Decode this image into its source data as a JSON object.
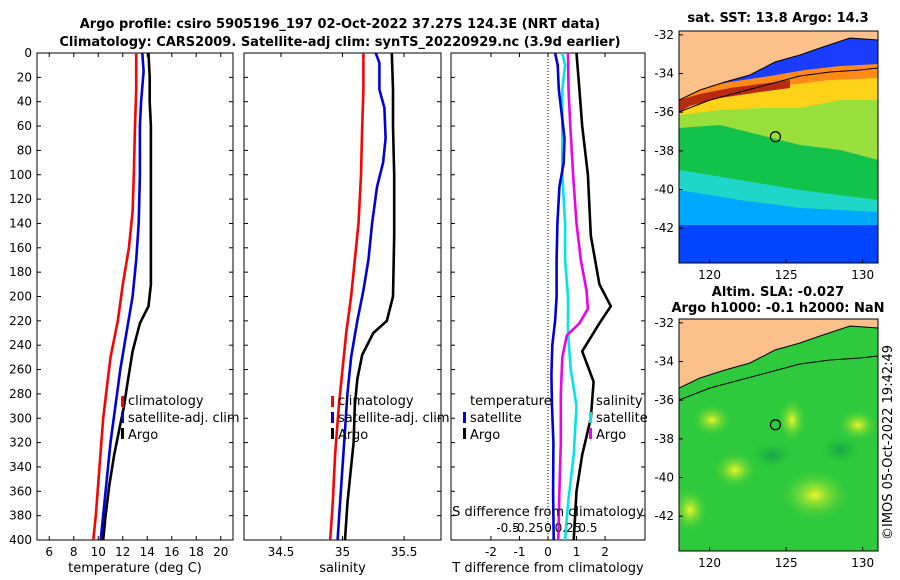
{
  "titles": {
    "line1": "Argo profile: csiro 5905196_197 02-Oct-2022 37.27S 124.3E (NRT data)",
    "line2": "Climatology: CARS2009. Satellite-adj clim: synTS_20220929.nc (3.9d earlier)",
    "sst_title": "sat. SST: 13.8 Argo: 14.3",
    "sla_title1": "Altim. SLA: -0.027",
    "sla_title2": "Argo h1000: -0.1 h2000: NaN",
    "credit": "©IMOS 05-Oct-2022 19:42:49"
  },
  "colors": {
    "climatology": "#ff0000",
    "satellite": "#0000dd",
    "argo": "#000000",
    "t_sat_diff": "#00e6e6",
    "s_diff": "#ee00ee"
  },
  "chart_data": [
    {
      "type": "line",
      "title": "",
      "xlabel": "temperature (deg C)",
      "ylabel": "",
      "xlim": [
        5,
        21
      ],
      "ylim": [
        0,
        400
      ],
      "xticks": [
        6,
        8,
        10,
        12,
        14,
        16,
        18,
        20
      ],
      "yticks": [
        0,
        20,
        40,
        60,
        80,
        100,
        120,
        140,
        160,
        180,
        200,
        220,
        240,
        260,
        280,
        300,
        320,
        340,
        360,
        380,
        400
      ],
      "legend": [
        "climatology",
        "satellite-adj. clim",
        "Argo"
      ],
      "series": [
        {
          "name": "climatology",
          "points": [
            [
              13.1,
              0
            ],
            [
              13.1,
              30
            ],
            [
              13.0,
              60
            ],
            [
              12.9,
              100
            ],
            [
              12.8,
              130
            ],
            [
              12.5,
              160
            ],
            [
              12.0,
              190
            ],
            [
              11.6,
              220
            ],
            [
              11.0,
              250
            ],
            [
              10.7,
              275
            ],
            [
              10.4,
              300
            ],
            [
              10.1,
              340
            ],
            [
              9.8,
              380
            ],
            [
              9.6,
              400
            ]
          ]
        },
        {
          "name": "satellite-adj. clim",
          "points": [
            [
              13.6,
              0
            ],
            [
              13.7,
              15
            ],
            [
              13.5,
              40
            ],
            [
              13.4,
              60
            ],
            [
              13.4,
              100
            ],
            [
              13.3,
              140
            ],
            [
              13.1,
              170
            ],
            [
              12.8,
              200
            ],
            [
              12.3,
              230
            ],
            [
              11.8,
              260
            ],
            [
              11.4,
              290
            ],
            [
              11.0,
              320
            ],
            [
              10.6,
              360
            ],
            [
              10.2,
              400
            ]
          ]
        },
        {
          "name": "Argo",
          "points": [
            [
              14.1,
              0
            ],
            [
              14.2,
              20
            ],
            [
              14.2,
              40
            ],
            [
              14.3,
              60
            ],
            [
              14.3,
              100
            ],
            [
              14.3,
              150
            ],
            [
              14.3,
              190
            ],
            [
              14.1,
              208
            ],
            [
              13.4,
              222
            ],
            [
              12.8,
              245
            ],
            [
              12.4,
              270
            ],
            [
              12.1,
              290
            ],
            [
              11.7,
              310
            ],
            [
              11.3,
              330
            ],
            [
              10.9,
              355
            ],
            [
              10.6,
              380
            ],
            [
              10.4,
              400
            ]
          ]
        }
      ]
    },
    {
      "type": "line",
      "title": "",
      "xlabel": "salinity",
      "ylabel": "",
      "xlim": [
        34.2,
        35.8
      ],
      "ylim": [
        0,
        400
      ],
      "xticks": [
        34.5,
        35,
        35.5
      ],
      "yticks": [
        0,
        20,
        40,
        60,
        80,
        100,
        120,
        140,
        160,
        180,
        200,
        220,
        240,
        260,
        280,
        300,
        320,
        340,
        360,
        380,
        400
      ],
      "legend": [
        "climatology",
        "satellite-adj. clim",
        "Argo"
      ],
      "series": [
        {
          "name": "climatology",
          "points": [
            [
              35.17,
              0
            ],
            [
              35.17,
              30
            ],
            [
              35.16,
              60
            ],
            [
              35.15,
              100
            ],
            [
              35.13,
              140
            ],
            [
              35.1,
              170
            ],
            [
              35.07,
              200
            ],
            [
              35.03,
              230
            ],
            [
              35.0,
              260
            ],
            [
              34.97,
              290
            ],
            [
              34.94,
              330
            ],
            [
              34.92,
              370
            ],
            [
              34.9,
              400
            ]
          ]
        },
        {
          "name": "satellite-adj. clim",
          "points": [
            [
              35.27,
              0
            ],
            [
              35.3,
              8
            ],
            [
              35.3,
              30
            ],
            [
              35.34,
              45
            ],
            [
              35.35,
              70
            ],
            [
              35.33,
              90
            ],
            [
              35.28,
              110
            ],
            [
              35.24,
              140
            ],
            [
              35.21,
              170
            ],
            [
              35.17,
              195
            ],
            [
              35.12,
              220
            ],
            [
              35.07,
              250
            ],
            [
              35.04,
              280
            ],
            [
              35.02,
              310
            ],
            [
              35.0,
              340
            ],
            [
              34.98,
              370
            ],
            [
              34.96,
              400
            ]
          ]
        },
        {
          "name": "Argo",
          "points": [
            [
              35.4,
              0
            ],
            [
              35.41,
              30
            ],
            [
              35.41,
              60
            ],
            [
              35.42,
              100
            ],
            [
              35.42,
              150
            ],
            [
              35.41,
              200
            ],
            [
              35.36,
              220
            ],
            [
              35.25,
              230
            ],
            [
              35.16,
              248
            ],
            [
              35.12,
              268
            ],
            [
              35.1,
              290
            ],
            [
              35.09,
              320
            ],
            [
              35.07,
              340
            ],
            [
              35.04,
              370
            ],
            [
              35.02,
              400
            ]
          ]
        }
      ]
    },
    {
      "type": "line",
      "title": "",
      "xlabel": "T difference from climatology",
      "secondary_xlabel": "S difference from climatology",
      "ylabel": "",
      "xlim": [
        -3.4,
        3.4
      ],
      "ylim": [
        0,
        400
      ],
      "xticks": [
        -2,
        -1,
        0,
        1,
        2
      ],
      "secondary_xticks": [
        "-0.5",
        "-0.25",
        "0",
        "0.25",
        "0.5"
      ],
      "yticks": [
        0,
        20,
        40,
        60,
        80,
        100,
        120,
        140,
        160,
        180,
        200,
        220,
        240,
        260,
        280,
        300,
        320,
        340,
        360,
        380,
        400
      ],
      "legend_left_title": "temperature",
      "legend_right_title": "salinity",
      "legend": [
        "satellite",
        "Argo"
      ],
      "series": [
        {
          "name": "T satellite diff",
          "points": [
            [
              0.5,
              0
            ],
            [
              0.6,
              10
            ],
            [
              0.5,
              30
            ],
            [
              0.5,
              60
            ],
            [
              0.5,
              100
            ],
            [
              0.6,
              140
            ],
            [
              0.6,
              170
            ],
            [
              0.7,
              200
            ],
            [
              0.7,
              230
            ],
            [
              0.8,
              260
            ],
            [
              1.0,
              290
            ],
            [
              0.9,
              330
            ],
            [
              0.7,
              370
            ],
            [
              0.6,
              400
            ]
          ]
        },
        {
          "name": "T Argo diff",
          "points": [
            [
              1.0,
              0
            ],
            [
              1.1,
              30
            ],
            [
              1.2,
              60
            ],
            [
              1.4,
              100
            ],
            [
              1.5,
              150
            ],
            [
              1.8,
              190
            ],
            [
              2.2,
              208
            ],
            [
              1.8,
              222
            ],
            [
              1.2,
              245
            ],
            [
              1.6,
              270
            ],
            [
              1.5,
              300
            ],
            [
              1.2,
              330
            ],
            [
              1.0,
              360
            ],
            [
              0.9,
              400
            ]
          ]
        },
        {
          "name": "S satellite diff",
          "points": [
            [
              0.25,
              0
            ],
            [
              0.34,
              10
            ],
            [
              0.38,
              30
            ],
            [
              0.48,
              50
            ],
            [
              0.58,
              70
            ],
            [
              0.55,
              90
            ],
            [
              0.4,
              110
            ],
            [
              0.33,
              140
            ],
            [
              0.3,
              170
            ],
            [
              0.3,
              200
            ],
            [
              0.25,
              220
            ],
            [
              0.15,
              240
            ],
            [
              0.12,
              265
            ],
            [
              0.14,
              290
            ],
            [
              0.19,
              320
            ],
            [
              0.18,
              360
            ],
            [
              0.2,
              400
            ]
          ]
        },
        {
          "name": "S Argo diff",
          "points": [
            [
              0.7,
              0
            ],
            [
              0.72,
              30
            ],
            [
              0.78,
              60
            ],
            [
              0.88,
              100
            ],
            [
              1.0,
              140
            ],
            [
              1.15,
              170
            ],
            [
              1.35,
              195
            ],
            [
              1.4,
              210
            ],
            [
              1.1,
              222
            ],
            [
              0.66,
              232
            ],
            [
              0.5,
              250
            ],
            [
              0.45,
              280
            ],
            [
              0.45,
              320
            ],
            [
              0.4,
              360
            ],
            [
              0.36,
              400
            ]
          ]
        }
      ]
    },
    {
      "type": "heatmap",
      "title": "sat. SST: 13.8 Argo: 14.3",
      "xlim": [
        118,
        131
      ],
      "ylim": [
        -43.8,
        -31.8
      ],
      "xticks": [
        120,
        125,
        130
      ],
      "yticks": [
        -32,
        -34,
        -36,
        -38,
        -40,
        -42
      ],
      "argo_position": [
        124.3,
        -37.27
      ]
    },
    {
      "type": "heatmap",
      "title": "Altim. SLA: -0.027",
      "xlim": [
        118,
        131
      ],
      "ylim": [
        -43.8,
        -31.8
      ],
      "xticks": [
        120,
        125,
        130
      ],
      "yticks": [
        -32,
        -34,
        -36,
        -38,
        -40,
        -42
      ],
      "argo_position": [
        124.3,
        -37.27
      ]
    }
  ]
}
